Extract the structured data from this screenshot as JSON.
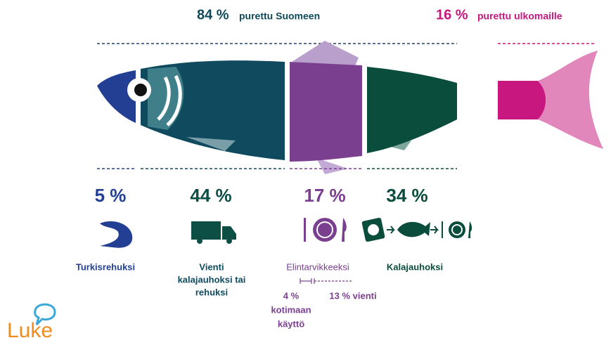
{
  "headline": {
    "domestic": {
      "value": "84 %",
      "label": "purettu Suomeen"
    },
    "abroad": {
      "value": "16 %",
      "label": "purettu ulkomaille"
    }
  },
  "uses": [
    {
      "value": "5 %",
      "label": [
        "Turkisrehuksi"
      ]
    },
    {
      "value": "44 %",
      "label": [
        "Vienti",
        "kalajauhoksi tai",
        "rehuksi"
      ]
    },
    {
      "value": "17 %",
      "label": [
        "Elintarvikkeeksi"
      ]
    },
    {
      "value": "34 %",
      "label": [
        "Kalajauhoksi"
      ]
    }
  ],
  "food_split": {
    "domestic": [
      "4 %",
      "kotimaan",
      "käyttö"
    ],
    "export": "13 % vienti"
  },
  "logo": "Luke"
}
